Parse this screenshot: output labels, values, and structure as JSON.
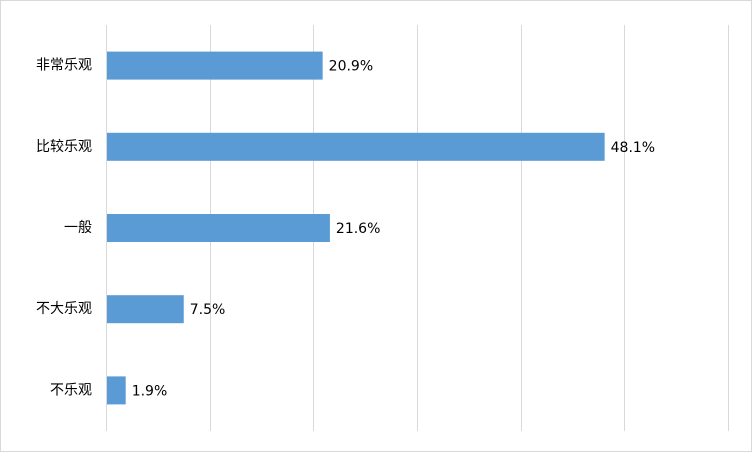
{
  "chart_data": {
    "type": "bar",
    "orientation": "horizontal",
    "categories": [
      "非常乐观",
      "比较乐观",
      "一般",
      "不大乐观",
      "不乐观"
    ],
    "values": [
      20.9,
      48.1,
      21.6,
      7.5,
      1.9
    ],
    "value_labels": [
      "20.9%",
      "48.1%",
      "21.6%",
      "7.5%",
      "1.9%"
    ],
    "xlim": [
      0,
      60
    ],
    "x_tick_step": 10,
    "grid": "vertical",
    "legend": "none",
    "bar_color": "#5b9bd5",
    "grid_color": "#d9d9d9"
  }
}
